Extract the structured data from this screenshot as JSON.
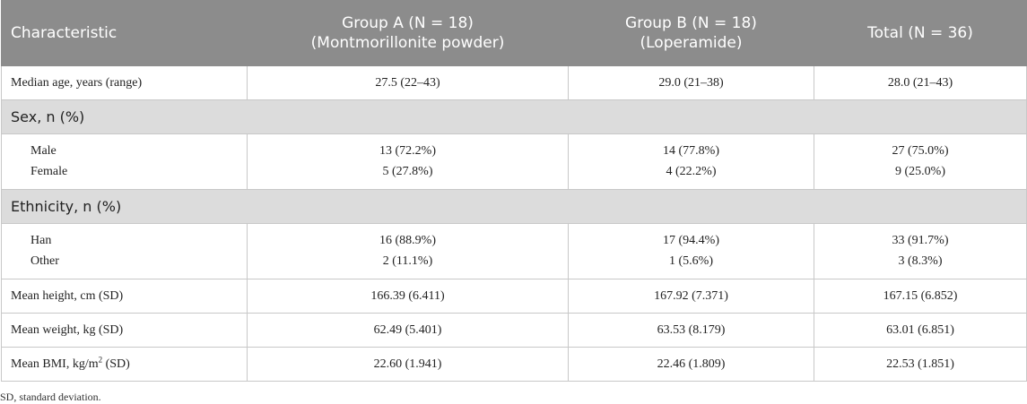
{
  "header": {
    "characteristic": "Characteristic",
    "group_a_line1": "Group A (N = 18)",
    "group_a_line2": "(Montmorillonite powder)",
    "group_b_line1": "Group B (N = 18)",
    "group_b_line2": "(Loperamide)",
    "total": "Total (N = 36)"
  },
  "rows": {
    "age": {
      "label": "Median age, years (range)",
      "a": "27.5 (22–43)",
      "b": "29.0 (21–38)",
      "total": "28.0 (21–43)"
    },
    "sex_section": "Sex, n (%)",
    "male": {
      "label": "Male",
      "a": "13 (72.2%)",
      "b": "14 (77.8%)",
      "total": "27 (75.0%)"
    },
    "female": {
      "label": "Female",
      "a": "5 (27.8%)",
      "b": "4 (22.2%)",
      "total": "9 (25.0%)"
    },
    "ethnicity_section": "Ethnicity, n (%)",
    "han": {
      "label": "Han",
      "a": "16 (88.9%)",
      "b": "17 (94.4%)",
      "total": "33 (91.7%)"
    },
    "other": {
      "label": "Other",
      "a": "2 (11.1%)",
      "b": "1 (5.6%)",
      "total": "3 (8.3%)"
    },
    "height": {
      "label": "Mean height, cm (SD)",
      "a": "166.39 (6.411)",
      "b": "167.92 (7.371)",
      "total": "167.15 (6.852)"
    },
    "weight": {
      "label": "Mean weight, kg (SD)",
      "a": "62.49 (5.401)",
      "b": "63.53 (8.179)",
      "total": "63.01 (6.851)"
    },
    "bmi": {
      "label_pre": "Mean BMI, kg/m",
      "label_sup": "2",
      "label_post": " (SD)",
      "a": "22.60 (1.941)",
      "b": "22.46 (1.809)",
      "total": "22.53 (1.851)"
    }
  },
  "footnote": "SD, standard deviation."
}
